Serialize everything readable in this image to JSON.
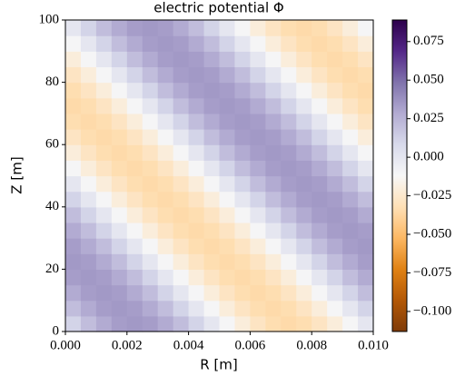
{
  "chart_data": {
    "type": "heatmap",
    "title": "electric potential Φ",
    "xlabel": "R [m]",
    "ylabel": "Z [m]",
    "xlim": [
      0,
      0.01
    ],
    "ylim": [
      0,
      100
    ],
    "xticks": [
      {
        "value": 0,
        "label": "0.000"
      },
      {
        "value": 0.002,
        "label": "0.002"
      },
      {
        "value": 0.004,
        "label": "0.004"
      },
      {
        "value": 0.006,
        "label": "0.006"
      },
      {
        "value": 0.008,
        "label": "0.008"
      },
      {
        "value": 0.01,
        "label": "0.010"
      }
    ],
    "yticks": [
      0,
      20,
      40,
      60,
      80,
      100
    ],
    "clim": [
      -0.113,
      0.089
    ],
    "cticks": [
      {
        "value": -0.1,
        "label": "−0.100"
      },
      {
        "value": -0.075,
        "label": "−0.075"
      },
      {
        "value": -0.05,
        "label": "−0.050"
      },
      {
        "value": -0.025,
        "label": "−0.025"
      },
      {
        "value": 0,
        "label": "0.000"
      },
      {
        "value": 0.025,
        "label": "0.025"
      },
      {
        "value": 0.05,
        "label": "0.050"
      },
      {
        "value": 0.075,
        "label": "0.075"
      }
    ],
    "colormap": [
      "#7f3b08",
      "#b35806",
      "#e08214",
      "#fdb863",
      "#fee0b6",
      "#f7f7f7",
      "#d8daeb",
      "#b2abd2",
      "#8073ac",
      "#542788",
      "#2d004b"
    ],
    "z": [
      [
        0.0108,
        0.0206,
        0.0283,
        0.0333,
        0.035,
        0.0333,
        0.0283,
        0.0206,
        0.0108,
        0,
        -0.0108,
        -0.0206,
        -0.0283,
        -0.0333,
        -0.035,
        -0.0333,
        -0.0283,
        -0.0206,
        -0.0108,
        0
      ],
      [
        0.0206,
        0.0283,
        0.0333,
        0.035,
        0.0333,
        0.0283,
        0.0206,
        0.0108,
        0,
        -0.0108,
        -0.0206,
        -0.0283,
        -0.0333,
        -0.035,
        -0.0333,
        -0.0283,
        -0.0206,
        -0.0108,
        0,
        0.0108
      ],
      [
        0.0283,
        0.0333,
        0.035,
        0.0333,
        0.0283,
        0.0206,
        0.0108,
        0,
        -0.0108,
        -0.0206,
        -0.0283,
        -0.0333,
        -0.035,
        -0.0333,
        -0.0283,
        -0.0206,
        -0.0108,
        0,
        0.0108,
        0.0206
      ],
      [
        0.0333,
        0.035,
        0.0333,
        0.0283,
        0.0206,
        0.0108,
        0,
        -0.0108,
        -0.0206,
        -0.0283,
        -0.0333,
        -0.035,
        -0.0333,
        -0.0283,
        -0.0206,
        -0.0108,
        0,
        0.0108,
        0.0206,
        0.0283
      ],
      [
        0.035,
        0.0333,
        0.0283,
        0.0206,
        0.0108,
        0,
        -0.0108,
        -0.0206,
        -0.0283,
        -0.0333,
        -0.035,
        -0.0333,
        -0.0283,
        -0.0206,
        -0.0108,
        0,
        0.0108,
        0.0206,
        0.0283,
        0.0333
      ],
      [
        0.0333,
        0.0283,
        0.0206,
        0.0108,
        0,
        -0.0108,
        -0.0206,
        -0.0283,
        -0.0333,
        -0.035,
        -0.0333,
        -0.0283,
        -0.0206,
        -0.0108,
        0,
        0.0108,
        0.0206,
        0.0283,
        0.0333,
        0.035
      ],
      [
        0.0283,
        0.0206,
        0.0108,
        0,
        -0.0108,
        -0.0206,
        -0.0283,
        -0.0333,
        -0.035,
        -0.0333,
        -0.0283,
        -0.0206,
        -0.0108,
        0,
        0.0108,
        0.0206,
        0.0283,
        0.0333,
        0.035,
        0.0333
      ],
      [
        0.0206,
        0.0108,
        0,
        -0.0108,
        -0.0206,
        -0.0283,
        -0.0333,
        -0.035,
        -0.0333,
        -0.0283,
        -0.0206,
        -0.0108,
        0,
        0.0108,
        0.0206,
        0.0283,
        0.0333,
        0.035,
        0.0333,
        0.0283
      ],
      [
        0.0108,
        0,
        -0.0108,
        -0.0206,
        -0.0283,
        -0.0333,
        -0.035,
        -0.0333,
        -0.0283,
        -0.0206,
        -0.0108,
        0,
        0.0108,
        0.0206,
        0.0283,
        0.0333,
        0.035,
        0.0333,
        0.0283,
        0.0206
      ],
      [
        0,
        -0.0108,
        -0.0206,
        -0.0283,
        -0.0333,
        -0.035,
        -0.0333,
        -0.0283,
        -0.0206,
        -0.0108,
        0,
        0.0108,
        0.0206,
        0.0283,
        0.0333,
        0.035,
        0.0333,
        0.0283,
        0.0206,
        0.0108
      ],
      [
        -0.0108,
        -0.0206,
        -0.0283,
        -0.0333,
        -0.035,
        -0.0333,
        -0.0283,
        -0.0206,
        -0.0108,
        0,
        0.0108,
        0.0206,
        0.0283,
        0.0333,
        0.035,
        0.0333,
        0.0283,
        0.0206,
        0.0108,
        0
      ],
      [
        -0.0206,
        -0.0283,
        -0.0333,
        -0.035,
        -0.0333,
        -0.0283,
        -0.0206,
        -0.0108,
        0,
        0.0108,
        0.0206,
        0.0283,
        0.0333,
        0.035,
        0.0333,
        0.0283,
        0.0206,
        0.0108,
        0,
        -0.0108
      ],
      [
        -0.0283,
        -0.0333,
        -0.035,
        -0.0333,
        -0.0283,
        -0.0206,
        -0.0108,
        0,
        0.0108,
        0.0206,
        0.0283,
        0.0333,
        0.035,
        0.0333,
        0.0283,
        0.0206,
        0.0108,
        0,
        -0.0108,
        -0.0206
      ],
      [
        -0.0333,
        -0.035,
        -0.0333,
        -0.0283,
        -0.0206,
        -0.0108,
        0,
        0.0108,
        0.0206,
        0.0283,
        0.0333,
        0.035,
        0.0333,
        0.0283,
        0.0206,
        0.0108,
        0,
        -0.0108,
        -0.0206,
        -0.0283
      ],
      [
        -0.035,
        -0.0333,
        -0.0283,
        -0.0206,
        -0.0108,
        0,
        0.0108,
        0.0206,
        0.0283,
        0.0333,
        0.035,
        0.0333,
        0.0283,
        0.0206,
        0.0108,
        0,
        -0.0108,
        -0.0206,
        -0.0283,
        -0.0333
      ],
      [
        -0.0333,
        -0.0283,
        -0.0206,
        -0.0108,
        0,
        0.0108,
        0.0206,
        0.0283,
        0.0333,
        0.035,
        0.0333,
        0.0283,
        0.0206,
        0.0108,
        0,
        -0.0108,
        -0.0206,
        -0.0283,
        -0.0333,
        -0.035
      ],
      [
        -0.0283,
        -0.0206,
        -0.0108,
        0,
        0.0108,
        0.0206,
        0.0283,
        0.0333,
        0.035,
        0.0333,
        0.0283,
        0.0206,
        0.0108,
        0,
        -0.0108,
        -0.0206,
        -0.0283,
        -0.0333,
        -0.035,
        -0.0333
      ],
      [
        -0.0206,
        -0.0108,
        0,
        0.0108,
        0.0206,
        0.0283,
        0.0333,
        0.035,
        0.0333,
        0.0283,
        0.0206,
        0.0108,
        0,
        -0.0108,
        -0.0206,
        -0.0283,
        -0.0333,
        -0.035,
        -0.0333,
        -0.0283
      ],
      [
        -0.0108,
        0,
        0.0108,
        0.0206,
        0.0283,
        0.0333,
        0.035,
        0.0333,
        0.0283,
        0.0206,
        0.0108,
        0,
        -0.0108,
        -0.0206,
        -0.0283,
        -0.0333,
        -0.035,
        -0.0333,
        -0.0283,
        -0.0206
      ],
      [
        0,
        0.0108,
        0.0206,
        0.0283,
        0.0333,
        0.035,
        0.0333,
        0.0283,
        0.0206,
        0.0108,
        0,
        -0.0108,
        -0.0206,
        -0.0283,
        -0.0333,
        -0.035,
        -0.0333,
        -0.0283,
        -0.0206,
        -0.0108
      ]
    ]
  }
}
